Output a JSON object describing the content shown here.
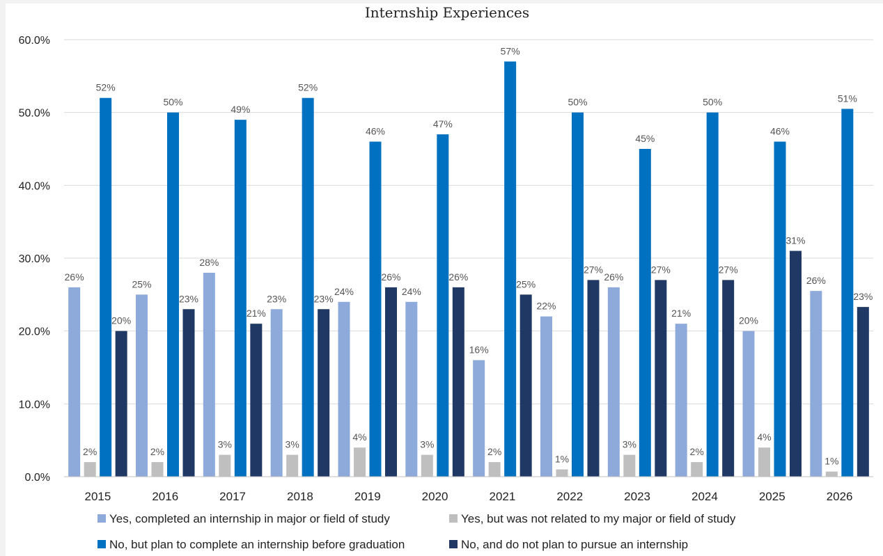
{
  "chart_data": {
    "type": "bar",
    "title": "Internship Experiences",
    "xlabel": "",
    "ylabel": "",
    "ylim": [
      0,
      60
    ],
    "y_ticks": [
      "0.0%",
      "10.0%",
      "20.0%",
      "30.0%",
      "40.0%",
      "50.0%",
      "60.0%"
    ],
    "grid": true,
    "legend_position": "bottom",
    "categories": [
      "2015",
      "2016",
      "2017",
      "2018",
      "2019",
      "2020",
      "2021",
      "2022",
      "2023",
      "2024",
      "2025",
      "2026"
    ],
    "series": [
      {
        "name": "Yes, completed an internship in major or field of study",
        "color": "#8eaadb",
        "values": [
          26,
          25,
          28,
          23,
          24,
          24,
          16,
          22,
          26,
          21,
          20,
          25.5
        ],
        "labels": [
          "26%",
          "25%",
          "28%",
          "23%",
          "24%",
          "24%",
          "16%",
          "22%",
          "26%",
          "21%",
          "20%",
          "26%"
        ]
      },
      {
        "name": "Yes, but was not related to my major or field of study",
        "color": "#bfbfbf",
        "values": [
          2,
          2,
          3,
          3,
          4,
          3,
          2,
          1,
          3,
          2,
          4,
          0.7
        ],
        "labels": [
          "2%",
          "2%",
          "3%",
          "3%",
          "4%",
          "3%",
          "2%",
          "1%",
          "3%",
          "2%",
          "4%",
          "1%"
        ]
      },
      {
        "name": "No, but plan to complete an internship before graduation",
        "color": "#0070c0",
        "values": [
          52,
          50,
          49,
          52,
          46,
          47,
          57,
          50,
          45,
          50,
          46,
          50.5
        ],
        "labels": [
          "52%",
          "50%",
          "49%",
          "52%",
          "46%",
          "47%",
          "57%",
          "50%",
          "45%",
          "50%",
          "46%",
          "51%"
        ]
      },
      {
        "name": "No, and do not plan to pursue an internship",
        "color": "#203864",
        "values": [
          20,
          23,
          21,
          23,
          26,
          26,
          25,
          27,
          27,
          27,
          31,
          23.3
        ],
        "labels": [
          "20%",
          "23%",
          "21%",
          "23%",
          "26%",
          "26%",
          "25%",
          "27%",
          "27%",
          "27%",
          "31%",
          "23%"
        ]
      }
    ]
  }
}
